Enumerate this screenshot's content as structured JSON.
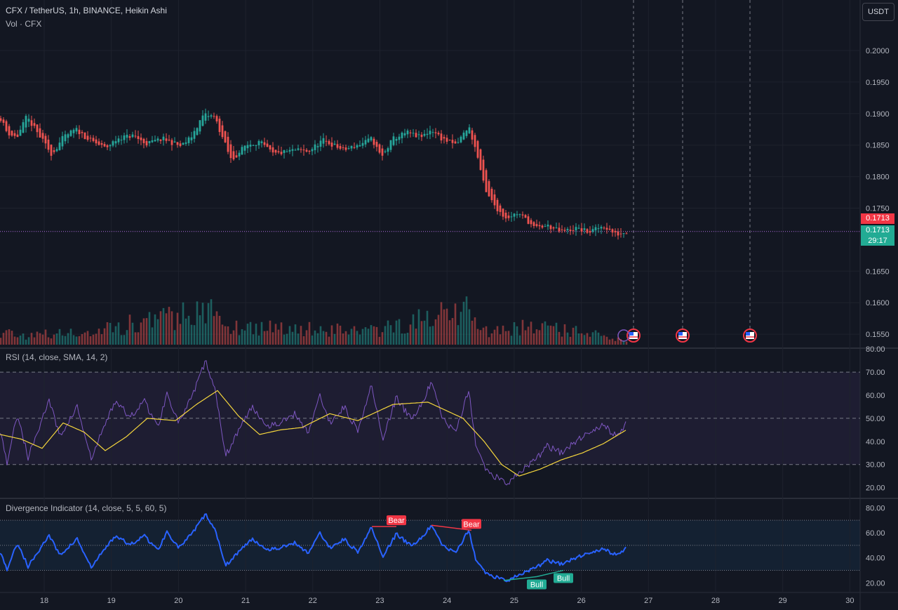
{
  "header": {
    "title": "CFX / TetherUS, 1h, BINANCE, Heikin Ashi",
    "volume_label": "Vol · CFX",
    "currency_button": "USDT"
  },
  "rsi_pane": {
    "label": "RSI (14, close, SMA, 14, 2)"
  },
  "div_pane": {
    "label": "Divergence Indicator (14, close, 5, 5, 60, 5)"
  },
  "price_tags": {
    "prev_close": "0.1713",
    "last": "0.1713",
    "countdown": "29:17"
  },
  "colors": {
    "background": "#131722",
    "grid": "#1e222d",
    "up": "#26a69a",
    "down": "#ef5350",
    "rsi_line": "#7e57c2",
    "rsi_ma": "#f5d63d",
    "div_line": "#2962ff",
    "bear": "#f23645",
    "bull": "#22ab94",
    "text": "#b2b5be"
  },
  "chart_data": [
    {
      "type": "candlestick",
      "title": "CFX / TetherUS, 1h, BINANCE, Heikin Ashi",
      "x_tick_labels": [
        "18",
        "19",
        "20",
        "21",
        "22",
        "23",
        "24",
        "25",
        "26",
        "27",
        "28",
        "29",
        "30"
      ],
      "y_ticks": [
        "0.2000",
        "0.1950",
        "0.1900",
        "0.1850",
        "0.1800",
        "0.1750",
        "0.1650",
        "0.1600",
        "0.1550"
      ],
      "ylim": [
        0.153,
        0.205
      ],
      "last_price": 0.1713,
      "series": [
        {
          "name": "price",
          "keypoints": [
            [
              0,
              0.1895
            ],
            [
              10,
              0.187
            ],
            [
              24,
              0.1862
            ],
            [
              38,
              0.1895
            ],
            [
              54,
              0.1868
            ],
            [
              74,
              0.1835
            ],
            [
              90,
              0.1862
            ],
            [
              108,
              0.1875
            ],
            [
              125,
              0.186
            ],
            [
              150,
              0.1845
            ],
            [
              170,
              0.1862
            ],
            [
              190,
              0.1865
            ],
            [
              208,
              0.1852
            ],
            [
              232,
              0.186
            ],
            [
              258,
              0.1848
            ],
            [
              272,
              0.1862
            ],
            [
              290,
              0.1898
            ],
            [
              306,
              0.1895
            ],
            [
              316,
              0.1865
            ],
            [
              330,
              0.1825
            ],
            [
              350,
              0.185
            ],
            [
              370,
              0.1855
            ],
            [
              390,
              0.1835
            ],
            [
              420,
              0.1842
            ],
            [
              440,
              0.184
            ],
            [
              460,
              0.1858
            ],
            [
              490,
              0.1842
            ],
            [
              515,
              0.1852
            ],
            [
              530,
              0.186
            ],
            [
              544,
              0.183
            ],
            [
              560,
              0.186
            ],
            [
              580,
              0.187
            ],
            [
              600,
              0.1862
            ],
            [
              615,
              0.1875
            ],
            [
              630,
              0.186
            ],
            [
              650,
              0.185
            ],
            [
              668,
              0.188
            ],
            [
              680,
              0.1835
            ],
            [
              692,
              0.1775
            ],
            [
              708,
              0.175
            ],
            [
              720,
              0.1735
            ],
            [
              738,
              0.1742
            ],
            [
              752,
              0.173
            ],
            [
              762,
              0.1718
            ],
            [
              780,
              0.1722
            ],
            [
              800,
              0.1712
            ],
            [
              820,
              0.1718
            ],
            [
              840,
              0.1712
            ],
            [
              860,
              0.1722
            ],
            [
              878,
              0.1708
            ],
            [
              893,
              0.1713
            ]
          ]
        }
      ],
      "volume": {
        "name": "Vol · CFX",
        "keypoints": [
          [
            0,
            20
          ],
          [
            40,
            15
          ],
          [
            120,
            18
          ],
          [
            295,
            55
          ],
          [
            320,
            30
          ],
          [
            540,
            22
          ],
          [
            670,
            60
          ],
          [
            680,
            20
          ],
          [
            760,
            30
          ],
          [
            893,
            8
          ]
        ]
      }
    },
    {
      "type": "line",
      "title": "RSI (14, close, SMA, 14, 2)",
      "y_ticks": [
        "80.00",
        "70.00",
        "60.00",
        "50.00",
        "40.00",
        "30.00",
        "20.00"
      ],
      "ylim": [
        18,
        82
      ],
      "band": [
        30,
        70
      ],
      "midline": 50,
      "series": [
        {
          "name": "RSI",
          "keypoints": [
            [
              0,
              45
            ],
            [
              10,
              31
            ],
            [
              25,
              52
            ],
            [
              40,
              33
            ],
            [
              70,
              58
            ],
            [
              85,
              42
            ],
            [
              110,
              55
            ],
            [
              130,
              32
            ],
            [
              145,
              44
            ],
            [
              165,
              58
            ],
            [
              185,
              50
            ],
            [
              205,
              58
            ],
            [
              225,
              46
            ],
            [
              238,
              61
            ],
            [
              255,
              48
            ],
            [
              275,
              60
            ],
            [
              293,
              75
            ],
            [
              308,
              60
            ],
            [
              322,
              34
            ],
            [
              340,
              45
            ],
            [
              360,
              55
            ],
            [
              380,
              47
            ],
            [
              400,
              48
            ],
            [
              420,
              52
            ],
            [
              440,
              44
            ],
            [
              455,
              60
            ],
            [
              470,
              48
            ],
            [
              490,
              55
            ],
            [
              510,
              45
            ],
            [
              530,
              65
            ],
            [
              545,
              40
            ],
            [
              565,
              59
            ],
            [
              585,
              50
            ],
            [
              600,
              55
            ],
            [
              615,
              66
            ],
            [
              630,
              50
            ],
            [
              650,
              44
            ],
            [
              668,
              62
            ],
            [
              678,
              39
            ],
            [
              692,
              28
            ],
            [
              710,
              24
            ],
            [
              725,
              22
            ],
            [
              740,
              27
            ],
            [
              760,
              31
            ],
            [
              780,
              38
            ],
            [
              800,
              35
            ],
            [
              820,
              40
            ],
            [
              840,
              44
            ],
            [
              860,
              47
            ],
            [
              880,
              42
            ],
            [
              893,
              48
            ]
          ]
        },
        {
          "name": "RSI-based MA",
          "keypoints": [
            [
              0,
              43
            ],
            [
              30,
              41
            ],
            [
              60,
              37
            ],
            [
              90,
              48
            ],
            [
              120,
              44
            ],
            [
              150,
              36
            ],
            [
              180,
              42
            ],
            [
              210,
              50
            ],
            [
              250,
              49
            ],
            [
              280,
              56
            ],
            [
              310,
              62
            ],
            [
              340,
              51
            ],
            [
              370,
              43
            ],
            [
              400,
              45
            ],
            [
              430,
              46
            ],
            [
              470,
              52
            ],
            [
              510,
              49
            ],
            [
              560,
              56
            ],
            [
              610,
              57
            ],
            [
              660,
              50
            ],
            [
              690,
              40
            ],
            [
              715,
              30
            ],
            [
              740,
              25
            ],
            [
              770,
              28
            ],
            [
              800,
              32
            ],
            [
              830,
              35
            ],
            [
              860,
              39
            ],
            [
              893,
              45
            ]
          ]
        }
      ]
    },
    {
      "type": "line",
      "title": "Divergence Indicator (14, close, 5, 5, 60, 5)",
      "y_ticks": [
        "80.00",
        "60.00",
        "40.00",
        "20.00"
      ],
      "ylim": [
        15,
        85
      ],
      "band": [
        30,
        70
      ],
      "midline": 50,
      "series": [
        {
          "name": "Divergence RSI",
          "keypoints": [
            [
              0,
              45
            ],
            [
              10,
              31
            ],
            [
              25,
              52
            ],
            [
              40,
              33
            ],
            [
              70,
              58
            ],
            [
              85,
              42
            ],
            [
              110,
              55
            ],
            [
              130,
              32
            ],
            [
              145,
              44
            ],
            [
              165,
              58
            ],
            [
              185,
              50
            ],
            [
              205,
              58
            ],
            [
              225,
              46
            ],
            [
              238,
              61
            ],
            [
              255,
              48
            ],
            [
              275,
              60
            ],
            [
              293,
              75
            ],
            [
              308,
              60
            ],
            [
              322,
              34
            ],
            [
              340,
              45
            ],
            [
              360,
              55
            ],
            [
              380,
              47
            ],
            [
              400,
              48
            ],
            [
              420,
              52
            ],
            [
              440,
              44
            ],
            [
              455,
              60
            ],
            [
              470,
              48
            ],
            [
              490,
              55
            ],
            [
              510,
              45
            ],
            [
              530,
              65
            ],
            [
              545,
              40
            ],
            [
              565,
              59
            ],
            [
              585,
              50
            ],
            [
              600,
              55
            ],
            [
              615,
              66
            ],
            [
              630,
              50
            ],
            [
              650,
              44
            ],
            [
              668,
              62
            ],
            [
              678,
              39
            ],
            [
              692,
              28
            ],
            [
              710,
              24
            ],
            [
              725,
              22
            ],
            [
              740,
              27
            ],
            [
              760,
              31
            ],
            [
              780,
              38
            ],
            [
              800,
              35
            ],
            [
              820,
              40
            ],
            [
              840,
              44
            ],
            [
              860,
              47
            ],
            [
              880,
              42
            ],
            [
              893,
              48
            ]
          ]
        }
      ],
      "annotations": [
        {
          "label": "Bear",
          "type": "bearish",
          "from": [
            530,
            65
          ],
          "to": [
            565,
            65
          ]
        },
        {
          "label": "Bear",
          "type": "bearish",
          "from": [
            615,
            66
          ],
          "to": [
            672,
            62
          ]
        },
        {
          "label": "Bull",
          "type": "bullish",
          "from": [
            718,
            22
          ],
          "to": [
            765,
            25
          ]
        },
        {
          "label": "Bull",
          "type": "bullish",
          "from": [
            765,
            25
          ],
          "to": [
            803,
            30
          ]
        }
      ]
    }
  ]
}
